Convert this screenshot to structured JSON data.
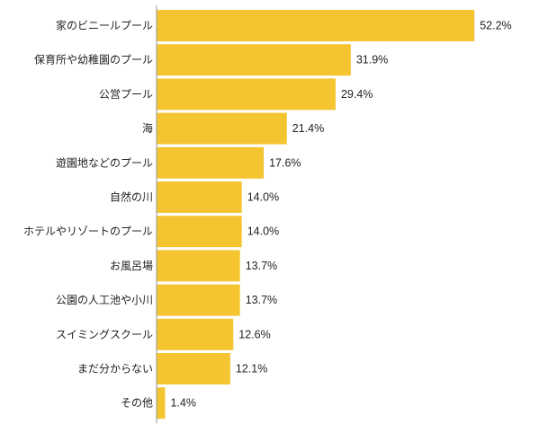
{
  "chart_data": {
    "type": "bar",
    "orientation": "horizontal",
    "title": "",
    "xlabel": "",
    "ylabel": "",
    "categories": [
      "家のビニールプール",
      "保育所や幼稚園のプール",
      "公営プール",
      "海",
      "遊園地などのプール",
      "自然の川",
      "ホテルやリゾートのプール",
      "お風呂場",
      "公園の人工池や小川",
      "スイミングスクール",
      "まだ分からない",
      "その他"
    ],
    "values": [
      52.2,
      31.9,
      29.4,
      21.4,
      17.6,
      14.0,
      14.0,
      13.7,
      13.7,
      12.6,
      12.1,
      1.4
    ],
    "value_labels": [
      "52.2%",
      "31.9%",
      "29.4%",
      "21.4%",
      "17.6%",
      "14.0%",
      "14.0%",
      "13.7%",
      "13.7%",
      "12.6%",
      "12.1%",
      "1.4%"
    ],
    "unit": "%",
    "xlim": [
      0,
      60
    ],
    "grid": false,
    "legend": "none",
    "bar_color": "#F5C431",
    "axis_color": "#999999"
  }
}
